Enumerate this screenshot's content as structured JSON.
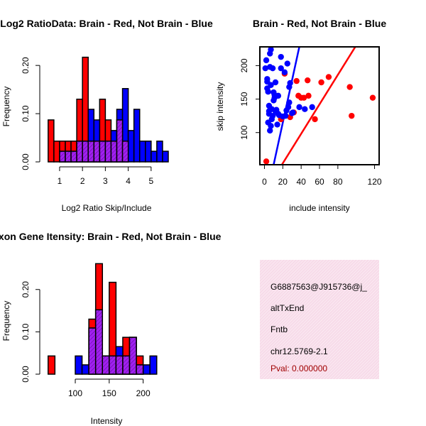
{
  "colors": {
    "brain": "#ff0000",
    "not_brain": "#0000ff",
    "overlap": "#a020f0",
    "info_bg": "#f7dbe9",
    "pval": "#a00000"
  },
  "chart_data": [
    {
      "type": "bar",
      "title": "Log2 RatioData: Brain - Red, Not Brain - Blue",
      "xlabel": "Log2 Ratio Skip/Include",
      "ylabel": "Frequency",
      "xlim": [
        0.35,
        5.75
      ],
      "ylim": [
        0,
        0.24
      ],
      "xticks": [
        1,
        2,
        3,
        4,
        5
      ],
      "yticks": [
        0,
        0.1,
        0.2
      ],
      "ytick_labels": [
        "0.00",
        "0.10",
        "0.20"
      ],
      "bin_start": 0.5,
      "bin_width": 0.25,
      "series": [
        {
          "name": "Brain",
          "color": "red",
          "values": [
            0.087,
            0.043,
            0.043,
            0.043,
            0.043,
            0.13,
            0.217,
            0.043,
            0.043,
            0.13,
            0.087,
            0.043,
            0.087,
            0.043,
            0.0,
            0.0,
            0.0,
            0.0,
            0.0,
            0.0,
            0.0
          ]
        },
        {
          "name": "Not Brain",
          "color": "blue",
          "values": [
            0.0,
            0.0,
            0.022,
            0.022,
            0.022,
            0.043,
            0.043,
            0.109,
            0.087,
            0.043,
            0.043,
            0.065,
            0.109,
            0.152,
            0.065,
            0.109,
            0.043,
            0.043,
            0.022,
            0.043,
            0.022
          ]
        }
      ]
    },
    {
      "type": "scatter",
      "title": "Brain - Red, Not Brain - Blue",
      "xlabel": "include intensity",
      "ylabel": "skip intensity",
      "xlim": [
        -5,
        125
      ],
      "ylim": [
        52,
        228
      ],
      "xticks": [
        0,
        20,
        40,
        60,
        80,
        120
      ],
      "yticks": [
        100,
        150,
        200
      ],
      "series": [
        {
          "name": "Brain",
          "color": "red",
          "points": [
            [
              2,
              57
            ],
            [
              18,
              120
            ],
            [
              22,
              188
            ],
            [
              28,
              123
            ],
            [
              32,
              130
            ],
            [
              35,
              177
            ],
            [
              37,
              155
            ],
            [
              40,
              152
            ],
            [
              43,
              152
            ],
            [
              47,
              178
            ],
            [
              48,
              155
            ],
            [
              55,
              120
            ],
            [
              62,
              175
            ],
            [
              70,
              183
            ],
            [
              93,
              168
            ],
            [
              95,
              125
            ],
            [
              118,
              152
            ]
          ]
        },
        {
          "name": "Not Brain",
          "color": "blue",
          "points": [
            [
              1,
              196
            ],
            [
              2,
              208
            ],
            [
              3,
              180
            ],
            [
              3,
              166
            ],
            [
              3,
              176
            ],
            [
              4,
              161
            ],
            [
              4,
              115
            ],
            [
              5,
              140
            ],
            [
              5,
              132
            ],
            [
              5,
              128
            ],
            [
              6,
              218
            ],
            [
              7,
              224
            ],
            [
              6,
              198
            ],
            [
              6,
              103
            ],
            [
              7,
              110
            ],
            [
              7,
              171
            ],
            [
              8,
              135
            ],
            [
              8,
              120
            ],
            [
              9,
              196
            ],
            [
              9,
              125
            ],
            [
              10,
              160
            ],
            [
              10,
              148
            ],
            [
              11,
              152
            ],
            [
              11,
              156
            ],
            [
              12,
              175
            ],
            [
              12,
              132
            ],
            [
              13,
              134
            ],
            [
              14,
              112
            ],
            [
              15,
              128
            ],
            [
              15,
              155
            ],
            [
              16,
              126
            ],
            [
              18,
              213
            ],
            [
              18,
              196
            ],
            [
              20,
              124
            ],
            [
              22,
              190
            ],
            [
              23,
              125
            ],
            [
              24,
              133
            ],
            [
              25,
              203
            ],
            [
              26,
              138
            ],
            [
              27,
              168
            ],
            [
              27,
              145
            ],
            [
              28,
              174
            ],
            [
              30,
              129
            ],
            [
              31,
              130
            ],
            [
              38,
              138
            ],
            [
              44,
              135
            ],
            [
              52,
              138
            ]
          ]
        }
      ],
      "fit_lines": [
        {
          "name": "Brain fit",
          "color": "red",
          "from": [
            19,
            52
          ],
          "to": [
            99,
            228
          ]
        },
        {
          "name": "Not Brain fit",
          "color": "blue",
          "from": [
            10,
            52
          ],
          "to": [
            38,
            228
          ]
        }
      ]
    },
    {
      "type": "bar",
      "title": "Exon Gene Itensity: Brain - Red, Not Brain - Blue",
      "xlabel": "Intensity",
      "ylabel": "Frequency",
      "xlim": [
        55,
        237
      ],
      "ylim": [
        0,
        0.27
      ],
      "xticks": [
        100,
        150,
        200
      ],
      "yticks": [
        0,
        0.1,
        0.2
      ],
      "ytick_labels": [
        "0.00",
        "0.10",
        "0.20"
      ],
      "bin_start": 60,
      "bin_width": 10,
      "series": [
        {
          "name": "Brain",
          "color": "red",
          "values": [
            0.043,
            0.0,
            0.0,
            0.0,
            0.0,
            0.0,
            0.13,
            0.261,
            0.043,
            0.217,
            0.043,
            0.087,
            0.087,
            0.043,
            0.0,
            0.0
          ]
        },
        {
          "name": "Not Brain",
          "color": "blue",
          "values": [
            0.0,
            0.0,
            0.0,
            0.0,
            0.043,
            0.022,
            0.109,
            0.152,
            0.043,
            0.043,
            0.065,
            0.043,
            0.087,
            0.022,
            0.022,
            0.043
          ]
        }
      ]
    }
  ],
  "info_panel": {
    "probe_id": "G6887563@J915736@j_",
    "event_type": "altTxEnd",
    "gene": "Fntb",
    "location": "chr12.5769-2.1",
    "pval": "Pval: 0.000000"
  }
}
